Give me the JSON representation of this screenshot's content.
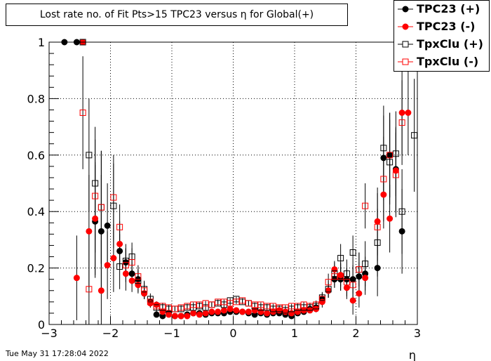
{
  "title": "Lost rate no. of Fit Pts>15 TPC23 versus η for Global(+)",
  "datestamp": "Tue May 31 17:28:04 2022",
  "chart_data": {
    "type": "scatter",
    "title": "Lost rate no. of Fit Pts>15 TPC23 versus η for Global(+)",
    "xlabel": "η",
    "ylabel": "",
    "xlim": [
      -3,
      3
    ],
    "ylim": [
      0,
      1.0
    ],
    "x_ticks": [
      "−3",
      "−2",
      "−1",
      "0",
      "1",
      "2",
      "3"
    ],
    "y_ticks": [
      "0",
      "0.2",
      "0.4",
      "0.6",
      "0.8",
      "1"
    ],
    "grid": true,
    "legend_position": "top-right",
    "series": [
      {
        "name": "TPC23 (+)",
        "color": "#000000",
        "marker": "filled-circle",
        "points": [
          [
            -2.75,
            1.0,
            0
          ],
          [
            -2.55,
            1.0,
            0
          ],
          [
            -2.25,
            0.365,
            0.2
          ],
          [
            -2.15,
            0.33,
            0.2
          ],
          [
            -2.05,
            0.35,
            0.15
          ],
          [
            -1.85,
            0.26,
            0.06
          ],
          [
            -1.75,
            0.22,
            0.05
          ],
          [
            -1.65,
            0.18,
            0.04
          ],
          [
            -1.55,
            0.16,
            0.03
          ],
          [
            -1.45,
            0.11,
            0.02
          ],
          [
            -1.35,
            0.08,
            0.015
          ],
          [
            -1.25,
            0.035,
            0.01
          ],
          [
            -1.15,
            0.03,
            0.008
          ],
          [
            -1.05,
            0.04,
            0.008
          ],
          [
            -0.95,
            0.03,
            0.006
          ],
          [
            -0.85,
            0.03,
            0.006
          ],
          [
            -0.75,
            0.035,
            0.006
          ],
          [
            -0.65,
            0.04,
            0.006
          ],
          [
            -0.55,
            0.04,
            0.006
          ],
          [
            -0.45,
            0.035,
            0.006
          ],
          [
            -0.35,
            0.04,
            0.006
          ],
          [
            -0.25,
            0.04,
            0.006
          ],
          [
            -0.15,
            0.04,
            0.006
          ],
          [
            -0.05,
            0.045,
            0.006
          ],
          [
            0.05,
            0.045,
            0.006
          ],
          [
            0.15,
            0.045,
            0.006
          ],
          [
            0.25,
            0.04,
            0.006
          ],
          [
            0.35,
            0.035,
            0.006
          ],
          [
            0.45,
            0.04,
            0.006
          ],
          [
            0.55,
            0.035,
            0.006
          ],
          [
            0.65,
            0.04,
            0.006
          ],
          [
            0.75,
            0.04,
            0.006
          ],
          [
            0.85,
            0.035,
            0.006
          ],
          [
            0.95,
            0.03,
            0.006
          ],
          [
            1.05,
            0.04,
            0.008
          ],
          [
            1.15,
            0.045,
            0.008
          ],
          [
            1.25,
            0.055,
            0.01
          ],
          [
            1.35,
            0.06,
            0.012
          ],
          [
            1.45,
            0.09,
            0.02
          ],
          [
            1.55,
            0.12,
            0.025
          ],
          [
            1.65,
            0.16,
            0.03
          ],
          [
            1.75,
            0.16,
            0.04
          ],
          [
            1.85,
            0.16,
            0.04
          ],
          [
            1.95,
            0.16,
            0.05
          ],
          [
            2.05,
            0.17,
            0.05
          ],
          [
            2.15,
            0.18,
            0.06
          ],
          [
            2.35,
            0.2,
            0.1
          ],
          [
            2.45,
            0.59,
            0.15
          ],
          [
            2.55,
            0.6,
            0.15
          ],
          [
            2.65,
            0.55,
            0.15
          ],
          [
            2.75,
            0.33,
            0.15
          ]
        ]
      },
      {
        "name": "TPC23 (-)",
        "color": "#ff0000",
        "marker": "filled-circle",
        "points": [
          [
            -2.45,
            1.0,
            0
          ],
          [
            -2.55,
            0.165,
            0.15
          ],
          [
            -2.35,
            0.33,
            0.2
          ],
          [
            -2.25,
            0.375,
            0.2
          ],
          [
            -2.15,
            0.12,
            0.18
          ],
          [
            -2.05,
            0.21,
            0.12
          ],
          [
            -1.95,
            0.235,
            0.12
          ],
          [
            -1.85,
            0.285,
            0.08
          ],
          [
            -1.75,
            0.18,
            0.06
          ],
          [
            -1.65,
            0.155,
            0.04
          ],
          [
            -1.55,
            0.14,
            0.03
          ],
          [
            -1.45,
            0.11,
            0.02
          ],
          [
            -1.35,
            0.075,
            0.015
          ],
          [
            -1.25,
            0.07,
            0.012
          ],
          [
            -1.15,
            0.045,
            0.01
          ],
          [
            -1.05,
            0.035,
            0.008
          ],
          [
            -0.95,
            0.03,
            0.006
          ],
          [
            -0.85,
            0.03,
            0.006
          ],
          [
            -0.75,
            0.03,
            0.006
          ],
          [
            -0.65,
            0.04,
            0.006
          ],
          [
            -0.55,
            0.035,
            0.006
          ],
          [
            -0.45,
            0.04,
            0.006
          ],
          [
            -0.35,
            0.045,
            0.006
          ],
          [
            -0.25,
            0.045,
            0.006
          ],
          [
            -0.15,
            0.05,
            0.006
          ],
          [
            -0.05,
            0.055,
            0.006
          ],
          [
            0.05,
            0.05,
            0.006
          ],
          [
            0.15,
            0.045,
            0.006
          ],
          [
            0.25,
            0.045,
            0.006
          ],
          [
            0.35,
            0.05,
            0.006
          ],
          [
            0.45,
            0.045,
            0.006
          ],
          [
            0.55,
            0.04,
            0.006
          ],
          [
            0.65,
            0.045,
            0.006
          ],
          [
            0.75,
            0.05,
            0.006
          ],
          [
            0.85,
            0.045,
            0.006
          ],
          [
            0.95,
            0.04,
            0.006
          ],
          [
            1.05,
            0.045,
            0.008
          ],
          [
            1.15,
            0.05,
            0.008
          ],
          [
            1.25,
            0.05,
            0.01
          ],
          [
            1.35,
            0.055,
            0.012
          ],
          [
            1.45,
            0.08,
            0.02
          ],
          [
            1.55,
            0.12,
            0.025
          ],
          [
            1.65,
            0.195,
            0.03
          ],
          [
            1.75,
            0.175,
            0.04
          ],
          [
            1.85,
            0.13,
            0.04
          ],
          [
            1.95,
            0.085,
            0.05
          ],
          [
            2.05,
            0.11,
            0.05
          ],
          [
            2.15,
            0.165,
            0.06
          ],
          [
            2.35,
            0.365,
            0.12
          ],
          [
            2.45,
            0.46,
            0.12
          ],
          [
            2.55,
            0.375,
            0.12
          ],
          [
            2.65,
            0.545,
            0.15
          ],
          [
            2.75,
            0.75,
            0.15
          ],
          [
            2.85,
            0.75,
            0.15
          ]
        ]
      },
      {
        "name": "TpxClu (+)",
        "color": "#000000",
        "marker": "open-square",
        "points": [
          [
            -2.45,
            1.0,
            0
          ],
          [
            -2.35,
            0.6,
            0.2
          ],
          [
            -2.25,
            0.5,
            0.2
          ],
          [
            -2.15,
            0.415,
            0.2
          ],
          [
            -1.95,
            0.42,
            0.15
          ],
          [
            -1.85,
            0.205,
            0.08
          ],
          [
            -1.75,
            0.225,
            0.06
          ],
          [
            -1.65,
            0.24,
            0.05
          ],
          [
            -1.55,
            0.155,
            0.04
          ],
          [
            -1.45,
            0.125,
            0.03
          ],
          [
            -1.35,
            0.09,
            0.02
          ],
          [
            -1.25,
            0.06,
            0.015
          ],
          [
            -1.15,
            0.06,
            0.012
          ],
          [
            -1.05,
            0.055,
            0.01
          ],
          [
            -0.95,
            0.055,
            0.008
          ],
          [
            -0.85,
            0.055,
            0.008
          ],
          [
            -0.75,
            0.06,
            0.008
          ],
          [
            -0.65,
            0.06,
            0.008
          ],
          [
            -0.55,
            0.065,
            0.008
          ],
          [
            -0.45,
            0.06,
            0.008
          ],
          [
            -0.35,
            0.07,
            0.008
          ],
          [
            -0.25,
            0.075,
            0.008
          ],
          [
            -0.15,
            0.07,
            0.008
          ],
          [
            -0.05,
            0.085,
            0.008
          ],
          [
            0.05,
            0.09,
            0.008
          ],
          [
            0.15,
            0.08,
            0.008
          ],
          [
            0.25,
            0.075,
            0.008
          ],
          [
            0.35,
            0.065,
            0.008
          ],
          [
            0.45,
            0.06,
            0.008
          ],
          [
            0.55,
            0.06,
            0.008
          ],
          [
            0.65,
            0.055,
            0.008
          ],
          [
            0.75,
            0.055,
            0.008
          ],
          [
            0.85,
            0.05,
            0.008
          ],
          [
            0.95,
            0.055,
            0.008
          ],
          [
            1.05,
            0.06,
            0.01
          ],
          [
            1.15,
            0.06,
            0.01
          ],
          [
            1.25,
            0.06,
            0.012
          ],
          [
            1.35,
            0.065,
            0.015
          ],
          [
            1.45,
            0.095,
            0.02
          ],
          [
            1.55,
            0.125,
            0.03
          ],
          [
            1.65,
            0.18,
            0.04
          ],
          [
            1.75,
            0.235,
            0.05
          ],
          [
            1.85,
            0.18,
            0.05
          ],
          [
            1.95,
            0.255,
            0.06
          ],
          [
            2.05,
            0.195,
            0.06
          ],
          [
            2.15,
            0.215,
            0.08
          ],
          [
            2.35,
            0.29,
            0.12
          ],
          [
            2.45,
            0.625,
            0.15
          ],
          [
            2.55,
            0.575,
            0.15
          ],
          [
            2.65,
            0.605,
            0.15
          ],
          [
            2.75,
            0.4,
            0.15
          ],
          [
            2.95,
            0.67,
            0.2
          ]
        ]
      },
      {
        "name": "TpxClu (-)",
        "color": "#ff0000",
        "marker": "open-square",
        "points": [
          [
            -2.45,
            0.75,
            0.2
          ],
          [
            -2.35,
            0.125,
            0.2
          ],
          [
            -2.25,
            0.455,
            0.2
          ],
          [
            -2.15,
            0.415,
            0.2
          ],
          [
            -1.95,
            0.45,
            0.15
          ],
          [
            -1.85,
            0.345,
            0.08
          ],
          [
            -1.75,
            0.21,
            0.06
          ],
          [
            -1.65,
            0.22,
            0.05
          ],
          [
            -1.55,
            0.17,
            0.04
          ],
          [
            -1.45,
            0.12,
            0.03
          ],
          [
            -1.35,
            0.08,
            0.02
          ],
          [
            -1.25,
            0.065,
            0.015
          ],
          [
            -1.15,
            0.065,
            0.012
          ],
          [
            -1.05,
            0.06,
            0.01
          ],
          [
            -0.95,
            0.055,
            0.008
          ],
          [
            -0.85,
            0.06,
            0.008
          ],
          [
            -0.75,
            0.065,
            0.008
          ],
          [
            -0.65,
            0.07,
            0.008
          ],
          [
            -0.55,
            0.07,
            0.008
          ],
          [
            -0.45,
            0.075,
            0.008
          ],
          [
            -0.35,
            0.07,
            0.008
          ],
          [
            -0.25,
            0.08,
            0.008
          ],
          [
            -0.15,
            0.08,
            0.008
          ],
          [
            -0.05,
            0.075,
            0.008
          ],
          [
            0.05,
            0.08,
            0.008
          ],
          [
            0.15,
            0.085,
            0.008
          ],
          [
            0.25,
            0.075,
            0.008
          ],
          [
            0.35,
            0.07,
            0.008
          ],
          [
            0.45,
            0.07,
            0.008
          ],
          [
            0.55,
            0.065,
            0.008
          ],
          [
            0.65,
            0.065,
            0.008
          ],
          [
            0.75,
            0.06,
            0.008
          ],
          [
            0.85,
            0.06,
            0.008
          ],
          [
            0.95,
            0.065,
            0.008
          ],
          [
            1.05,
            0.065,
            0.01
          ],
          [
            1.15,
            0.07,
            0.01
          ],
          [
            1.25,
            0.065,
            0.012
          ],
          [
            1.35,
            0.07,
            0.015
          ],
          [
            1.45,
            0.09,
            0.02
          ],
          [
            1.55,
            0.15,
            0.03
          ],
          [
            1.65,
            0.17,
            0.04
          ],
          [
            1.75,
            0.17,
            0.05
          ],
          [
            1.85,
            0.15,
            0.05
          ],
          [
            1.95,
            0.14,
            0.06
          ],
          [
            2.05,
            0.195,
            0.06
          ],
          [
            2.15,
            0.42,
            0.08
          ],
          [
            2.35,
            0.345,
            0.12
          ],
          [
            2.45,
            0.515,
            0.15
          ],
          [
            2.55,
            0.6,
            0.15
          ],
          [
            2.65,
            0.53,
            0.15
          ],
          [
            2.75,
            0.715,
            0.15
          ]
        ]
      }
    ]
  }
}
